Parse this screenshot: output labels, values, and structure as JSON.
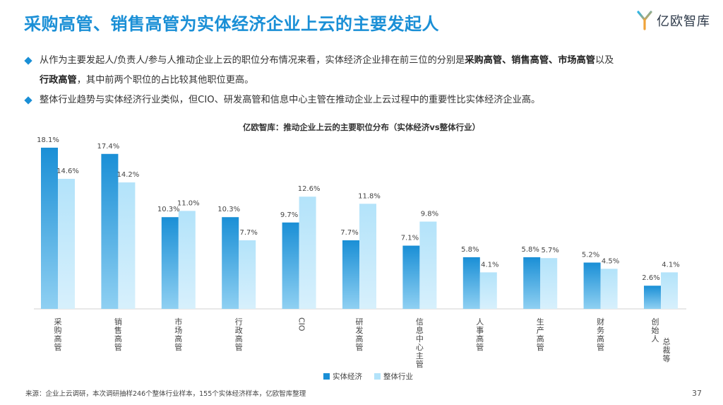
{
  "title": "采购高管、销售高管为实体经济企业上云的主要发起人",
  "logo": {
    "text": "亿欧智库",
    "icon": "yiou-logo-icon"
  },
  "bullets": [
    {
      "segments": [
        {
          "text": "从作为主要发起人/负责人/参与人推动企业上云的职位分布情况来看，实体经济企业排在前三位的分别是",
          "bold": false
        },
        {
          "text": "采购高管、销售高管、市场高管",
          "bold": true
        },
        {
          "text": "以及",
          "bold": false
        }
      ],
      "continuation": [
        {
          "text": "行政高管",
          "bold": true
        },
        {
          "text": "，其中前两个职位的占比较其他职位更高。",
          "bold": false
        }
      ]
    },
    {
      "segments": [
        {
          "text": "整体行业趋势与实体经济行业类似，但CIO、研发高管和信息中心主管在推动企业上云过程中的重要性比实体经济企业高。",
          "bold": false
        }
      ]
    }
  ],
  "chart_data": {
    "type": "bar",
    "title": "亿欧智库：推动企业上云的主要职位分布（实体经济vs整体行业）",
    "categories": [
      "采购高管",
      "销售高管",
      "市场高管",
      "行政高管",
      "CIO",
      "研发高管",
      "信息中心主管",
      "人事高管",
      "生产高管",
      "财务高管",
      "创始人、总裁等"
    ],
    "category_label_lines": [
      [
        "采购高管"
      ],
      [
        "销售高管"
      ],
      [
        "市场高管"
      ],
      [
        "行政高管"
      ],
      [
        "CIO"
      ],
      [
        "研发高管"
      ],
      [
        "信息中心主管"
      ],
      [
        "人事高管"
      ],
      [
        "生产高管"
      ],
      [
        "财务高管"
      ],
      [
        "创始人",
        "总裁等"
      ]
    ],
    "series": [
      {
        "name": "实体经济",
        "values": [
          18.1,
          17.4,
          10.3,
          10.3,
          9.7,
          7.7,
          7.1,
          5.8,
          5.8,
          5.2,
          2.6
        ],
        "color_top": "#1a8fd6",
        "color_bottom": "#8fd0f2"
      },
      {
        "name": "整体行业",
        "values": [
          14.6,
          14.2,
          11.0,
          7.7,
          12.6,
          11.8,
          9.8,
          4.1,
          5.7,
          4.5,
          4.1
        ],
        "color_top": "#b3e3fa",
        "color_bottom": "#d7f0fc"
      }
    ],
    "value_format": "percent-1dp",
    "ylim": [
      0,
      20
    ],
    "grid": false,
    "legend_position": "bottom-center"
  },
  "footer": {
    "source": "来源：企业上云调研，本次调研抽样246个整体行业样本，155个实体经济样本，亿欧智库整理",
    "page_number": "37"
  }
}
